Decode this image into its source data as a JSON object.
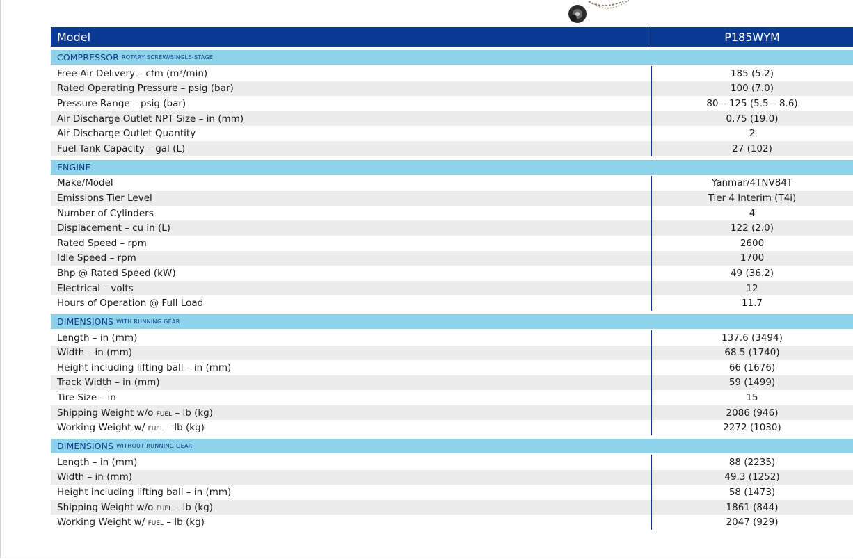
{
  "header": {
    "model_label": "Model",
    "model_value": "P185WYM"
  },
  "sections": [
    {
      "title": "COMPRESSOR",
      "subtitle": "rotary screw/single-stage",
      "rows": [
        {
          "label": "Free-Air Delivery – cfm (m³/min)",
          "value": "185 (5.2)"
        },
        {
          "label": "Rated Operating Pressure – psig (bar)",
          "value": "100 (7.0)"
        },
        {
          "label": "Pressure Range – psig (bar)",
          "value": "80 – 125 (5.5 – 8.6)"
        },
        {
          "label": "Air Discharge Outlet NPT Size – in (mm)",
          "value": "0.75 (19.0)"
        },
        {
          "label": "Air Discharge Outlet Quantity",
          "value": "2"
        },
        {
          "label": "Fuel Tank Capacity – gal (L)",
          "value": "27 (102)"
        }
      ]
    },
    {
      "title": "ENGINE",
      "subtitle": "",
      "rows": [
        {
          "label": "Make/Model",
          "value": "Yanmar/4TNV84T"
        },
        {
          "label": "Emissions Tier Level",
          "value": "Tier 4 Interim (T4i)"
        },
        {
          "label": "Number of Cylinders",
          "value": "4"
        },
        {
          "label": "Displacement – cu in (L)",
          "value": "122 (2.0)"
        },
        {
          "label": "Rated Speed – rpm",
          "value": "2600"
        },
        {
          "label": "Idle Speed – rpm",
          "value": "1700"
        },
        {
          "label": "Bhp @ Rated Speed (kW)",
          "value": "49 (36.2)"
        },
        {
          "label": "Electrical – volts",
          "value": "12"
        },
        {
          "label": "Hours of Operation @ Full Load",
          "value": "11.7"
        }
      ]
    },
    {
      "title": "DIMENSIONS",
      "subtitle": "with running gear",
      "rows": [
        {
          "label": "Length – in (mm)",
          "value": "137.6 (3494)"
        },
        {
          "label": "Width – in (mm)",
          "value": "68.5 (1740)"
        },
        {
          "label": "Height including lifting ball – in (mm)",
          "value": "66 (1676)"
        },
        {
          "label": "Track Width – in (mm)",
          "value": "59 (1499)"
        },
        {
          "label": "Tire Size – in",
          "value": "15"
        },
        {
          "label_pre": "Shipping Weight w/o",
          "label_small": "fuel",
          "label_post": "– lb (kg)",
          "value": "2086 (946)"
        },
        {
          "label_pre": "Working Weight w/",
          "label_small": "fuel",
          "label_post": "– lb (kg)",
          "value": "2272 (1030)"
        }
      ]
    },
    {
      "title": "DIMENSIONS",
      "subtitle": "without running gear",
      "rows": [
        {
          "label": "Length – in (mm)",
          "value": "88 (2235)"
        },
        {
          "label": "Width – in (mm)",
          "value": "49.3 (1252)"
        },
        {
          "label": "Height including lifting ball – in (mm)",
          "value": "58 (1473)"
        },
        {
          "label_pre": "Shipping Weight w/o",
          "label_small": "fuel",
          "label_post": "– lb (kg)",
          "value": "1861 (844)"
        },
        {
          "label_pre": "Working Weight w/",
          "label_small": "fuel",
          "label_post": "– lb (kg)",
          "value": "2047 (929)"
        }
      ]
    }
  ],
  "colors": {
    "header_bg": "#0b3a95",
    "section_bg": "#8fd3ea",
    "section_text": "#0d3a8e",
    "stripe": "#ececec"
  }
}
